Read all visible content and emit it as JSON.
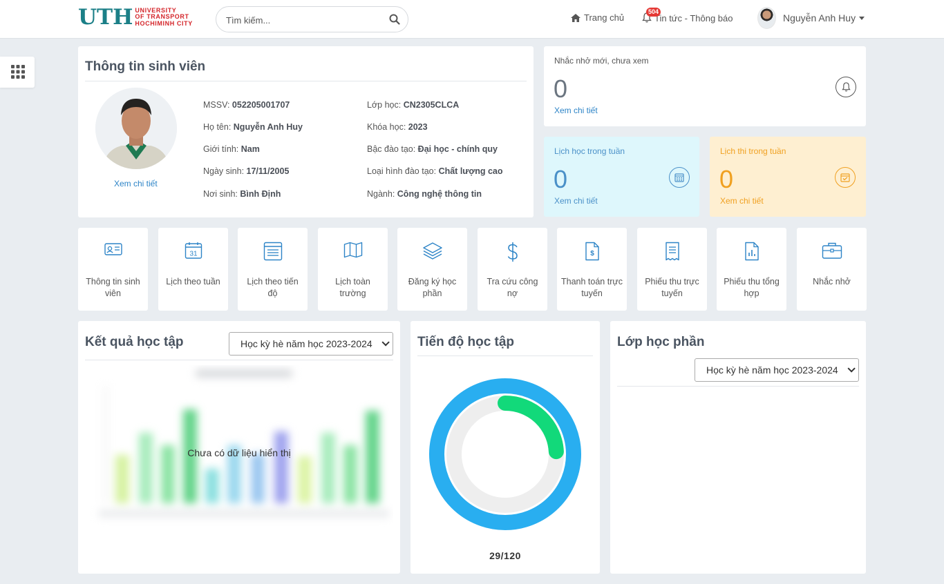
{
  "header": {
    "logo_mark": "UTH",
    "logo_lines": [
      "UNIVERSITY",
      "OF TRANSPORT",
      "HOCHIMINH CITY"
    ],
    "search_placeholder": "Tìm kiếm...",
    "nav_home": "Trang chủ",
    "nav_news": "Tin tức - Thông báo",
    "news_badge": "504",
    "user_name": "Nguyễn Anh Huy"
  },
  "student": {
    "title": "Thông tin sinh viên",
    "photo_link": "Xem chi tiết",
    "left_fields": [
      {
        "label": "MSSV: ",
        "value": "052205001707"
      },
      {
        "label": "Họ tên: ",
        "value": "Nguyễn Anh Huy"
      },
      {
        "label": "Giới tính: ",
        "value": "Nam"
      },
      {
        "label": "Ngày sinh: ",
        "value": "17/11/2005"
      },
      {
        "label": "Nơi sinh: ",
        "value": "Bình Định"
      }
    ],
    "right_fields": [
      {
        "label": "Lớp học: ",
        "value": "CN2305CLCA"
      },
      {
        "label": "Khóa học: ",
        "value": "2023"
      },
      {
        "label": "Bậc đào tạo: ",
        "value": "Đại học - chính quy"
      },
      {
        "label": "Loại hình đào tạo: ",
        "value": "Chất lượng cao"
      },
      {
        "label": "Ngành: ",
        "value": "Công nghệ thông tin"
      }
    ]
  },
  "reminders": {
    "label": "Nhắc nhở mới, chưa xem",
    "count": "0",
    "link": "Xem chi tiết",
    "icon": "bell-icon",
    "color": "#333333"
  },
  "week_schedule": {
    "label": "Lịch học trong tuần",
    "count": "0",
    "link": "Xem chi tiết",
    "icon": "calendar-icon",
    "color": "#4a90c8"
  },
  "exam_schedule": {
    "label": "Lịch thi trong tuần",
    "count": "0",
    "link": "Xem chi tiết",
    "icon": "calendar-check-icon",
    "color": "#f0a020"
  },
  "tiles": [
    {
      "label": "Thông tin sinh viên",
      "icon": "id-card-icon"
    },
    {
      "label": "Lịch theo tuần",
      "icon": "calendar-31-icon"
    },
    {
      "label": "Lịch theo tiến độ",
      "icon": "list-calendar-icon"
    },
    {
      "label": "Lịch toàn trường",
      "icon": "map-icon"
    },
    {
      "label": "Đăng ký học phần",
      "icon": "layers-icon"
    },
    {
      "label": "Tra cứu công nợ",
      "icon": "dollar-icon"
    },
    {
      "label": "Thanh toán trực tuyến",
      "icon": "invoice-icon"
    },
    {
      "label": "Phiếu thu trực tuyến",
      "icon": "receipt-icon"
    },
    {
      "label": "Phiếu thu tổng hợp",
      "icon": "report-icon"
    },
    {
      "label": "Nhắc nhở",
      "icon": "briefcase-icon"
    }
  ],
  "results": {
    "title": "Kết quả học tập",
    "semester": "Học kỳ hè năm học 2023-2024",
    "empty_message": "Chưa có dữ liệu hiển thị"
  },
  "progress": {
    "title": "Tiến độ học tập",
    "completed": 29,
    "total": 120,
    "label": "29/120",
    "ring_color": "#29aef0",
    "done_color": "#12d97a"
  },
  "classes": {
    "title": "Lớp học phần",
    "semester": "Học kỳ hè năm học 2023-2024"
  }
}
